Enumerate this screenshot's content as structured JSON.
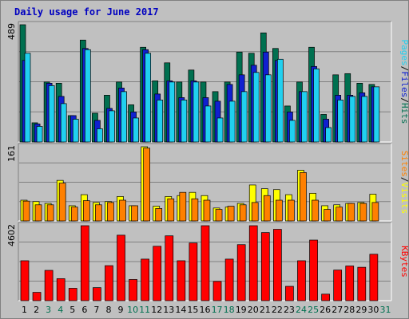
{
  "title": "Daily usage for June 2017",
  "colors": {
    "hits": "#007050",
    "files": "#1020d0",
    "pages": "#20d0f0",
    "visits": "#ffff00",
    "sites": "#ff8000",
    "kbytes": "#ff0000",
    "weekend_day": "#007050",
    "weekday": "#000000",
    "background": "#c0c0c0",
    "title": "#0000c0"
  },
  "chart_data": [
    {
      "type": "bar",
      "name": "hits-files-pages",
      "y_max_label": "489",
      "ylim": [
        0,
        489
      ],
      "ylabel_parts": [
        "Pages",
        "/",
        "Files",
        "/",
        "Hits"
      ],
      "categories": [
        "1",
        "2",
        "3",
        "4",
        "5",
        "6",
        "7",
        "8",
        "9",
        "10",
        "11",
        "12",
        "13",
        "14",
        "15",
        "16",
        "17",
        "18",
        "19",
        "20",
        "21",
        "22",
        "23",
        "24",
        "25",
        "26",
        "27",
        "28",
        "29",
        "30",
        "31"
      ],
      "series": [
        {
          "name": "Hits",
          "values": [
            489,
            80,
            250,
            245,
            110,
            425,
            120,
            195,
            250,
            155,
            395,
            255,
            330,
            250,
            300,
            250,
            210,
            250,
            375,
            370,
            455,
            390,
            150,
            250,
            395,
            115,
            280,
            285,
            245,
            240,
            0
          ]
        },
        {
          "name": "Files",
          "values": [
            340,
            75,
            245,
            190,
            110,
            390,
            90,
            140,
            225,
            125,
            385,
            200,
            255,
            185,
            255,
            185,
            170,
            240,
            280,
            320,
            375,
            340,
            125,
            210,
            315,
            95,
            195,
            195,
            205,
            230,
            0
          ]
        },
        {
          "name": "Pages",
          "values": [
            370,
            65,
            235,
            160,
            95,
            385,
            55,
            130,
            210,
            100,
            370,
            175,
            250,
            175,
            250,
            150,
            100,
            170,
            210,
            290,
            280,
            345,
            90,
            210,
            305,
            60,
            175,
            190,
            190,
            230,
            0
          ]
        }
      ]
    },
    {
      "type": "bar",
      "name": "visits-sites",
      "y_max_label": "161",
      "ylim": [
        0,
        161
      ],
      "ylabel_parts": [
        "Sites",
        "/",
        "Visits"
      ],
      "categories": [
        "1",
        "2",
        "3",
        "4",
        "5",
        "6",
        "7",
        "8",
        "9",
        "10",
        "11",
        "12",
        "13",
        "14",
        "15",
        "16",
        "17",
        "18",
        "19",
        "20",
        "21",
        "22",
        "23",
        "24",
        "25",
        "26",
        "27",
        "28",
        "29",
        "30",
        "31"
      ],
      "series": [
        {
          "name": "Visits",
          "values": [
            45,
            42,
            38,
            88,
            33,
            57,
            40,
            42,
            53,
            33,
            161,
            32,
            53,
            55,
            62,
            55,
            28,
            30,
            38,
            78,
            70,
            68,
            57,
            110,
            60,
            33,
            35,
            38,
            40,
            58,
            0
          ]
        },
        {
          "name": "Sites",
          "values": [
            43,
            35,
            35,
            82,
            30,
            44,
            35,
            40,
            45,
            33,
            158,
            27,
            48,
            62,
            48,
            45,
            25,
            32,
            35,
            40,
            55,
            45,
            45,
            105,
            45,
            25,
            30,
            38,
            38,
            40,
            0
          ]
        }
      ]
    },
    {
      "type": "bar",
      "name": "kbytes",
      "y_max_label": "4602",
      "ylim": [
        0,
        4602
      ],
      "ylabel_parts": [
        "KBytes"
      ],
      "categories": [
        "1",
        "2",
        "3",
        "4",
        "5",
        "6",
        "7",
        "8",
        "9",
        "10",
        "11",
        "12",
        "13",
        "14",
        "15",
        "16",
        "17",
        "18",
        "19",
        "20",
        "21",
        "22",
        "23",
        "24",
        "25",
        "26",
        "27",
        "28",
        "29",
        "30",
        "31"
      ],
      "series": [
        {
          "name": "KBytes",
          "values": [
            2450,
            510,
            1860,
            1350,
            760,
            4602,
            800,
            2150,
            4020,
            1300,
            2550,
            3340,
            3980,
            2450,
            3540,
            4602,
            1180,
            2550,
            3440,
            4602,
            4180,
            4380,
            880,
            2450,
            3720,
            400,
            1880,
            2130,
            2050,
            2850,
            0
          ]
        }
      ]
    }
  ],
  "weekend_days": [
    "3",
    "4",
    "10",
    "11",
    "17",
    "18",
    "24",
    "25",
    "31"
  ]
}
